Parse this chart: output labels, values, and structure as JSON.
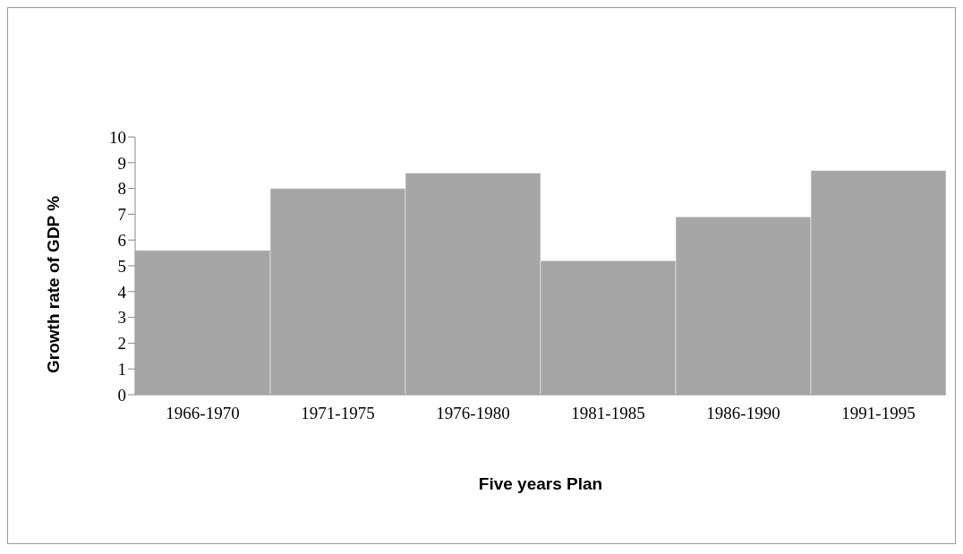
{
  "chart_data": {
    "type": "bar",
    "xlabel": "Five years Plan",
    "ylabel": "Growth rate of GDP %",
    "categories": [
      "1966-1970",
      "1971-1975",
      "1976-1980",
      "1981-1985",
      "1986-1990",
      "1991-1995"
    ],
    "values": [
      5.6,
      8.0,
      8.6,
      5.2,
      6.9,
      8.7
    ],
    "color": "#a6a6a6",
    "ylim": [
      0,
      10
    ],
    "yticks": [
      0,
      1,
      2,
      3,
      4,
      5,
      6,
      7,
      8,
      9,
      10
    ],
    "grid": false,
    "legend": false
  }
}
